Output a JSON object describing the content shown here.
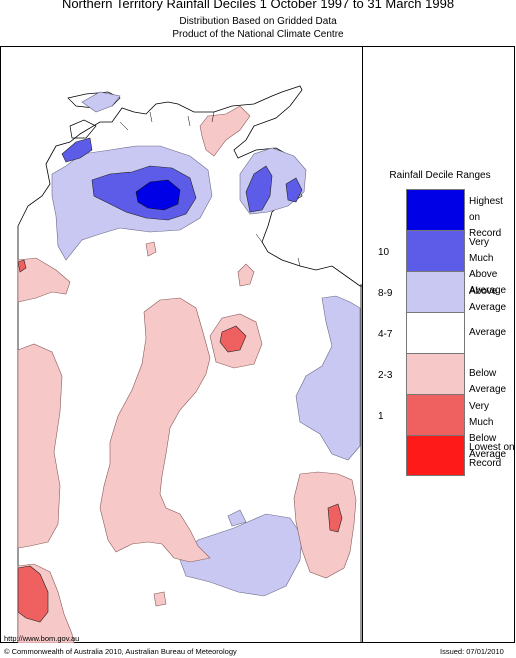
{
  "titles": {
    "main": "Northern Territory Rainfall Deciles     1 October 1997 to 31 March 1998",
    "line2": "Distribution Based on Gridded Data",
    "line3": "Product of the National Climate Centre"
  },
  "legend": {
    "title": "Rainfall Decile Ranges",
    "categories": [
      {
        "label": "Highest on Record",
        "range": "",
        "color": "#0000e6"
      },
      {
        "label": "Very Much Above Average",
        "range": "10",
        "color": "#5c5ce8"
      },
      {
        "label": "Above Average",
        "range": "8-9",
        "color": "#c8c8f2"
      },
      {
        "label": "Average",
        "range": "4-7",
        "color": "#ffffff"
      },
      {
        "label": "Below Average",
        "range": "2-3",
        "color": "#f7c8c8"
      },
      {
        "label": "Very Much Below Average",
        "range": "1",
        "color": "#ef6060"
      },
      {
        "label": "Lowest on Record",
        "range": "",
        "color": "#ff1a1a"
      }
    ]
  },
  "footer": {
    "url": "http://www.bom.gov.au",
    "copyright": "© Commonwealth of Australia 2010, Australian Bureau of Meteorology",
    "issued": "Issued: 07/01/2010"
  }
}
